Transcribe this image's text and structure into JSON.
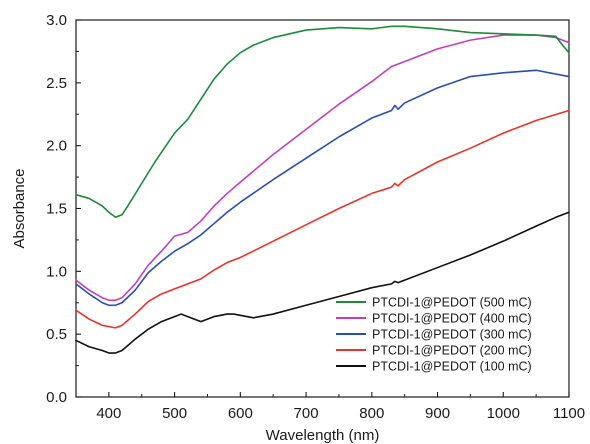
{
  "chart_data": {
    "type": "line",
    "xlabel": "Wavelength (nm)",
    "ylabel": "Absorbance",
    "xlim": [
      350,
      1100
    ],
    "ylim": [
      0,
      3.0
    ],
    "xticks": [
      400,
      500,
      600,
      700,
      800,
      900,
      1000,
      1100
    ],
    "yticks": [
      0.0,
      0.5,
      1.0,
      1.5,
      2.0,
      2.5,
      3.0
    ],
    "ytick_labels": [
      "0.0",
      "0.5",
      "1.0",
      "1.5",
      "2.0",
      "2.5",
      "3.0"
    ],
    "grid": false,
    "legend_position": "bottom-right",
    "series": [
      {
        "name": "PTCDI-1@PEDOT (500 mC)",
        "color": "#1e8a3a",
        "x": [
          350,
          370,
          390,
          400,
          410,
          420,
          430,
          450,
          470,
          500,
          520,
          540,
          560,
          580,
          600,
          620,
          650,
          700,
          750,
          800,
          830,
          850,
          900,
          950,
          1000,
          1050,
          1080,
          1090,
          1100
        ],
        "y": [
          1.61,
          1.58,
          1.52,
          1.47,
          1.43,
          1.45,
          1.53,
          1.7,
          1.87,
          2.1,
          2.21,
          2.37,
          2.53,
          2.65,
          2.74,
          2.8,
          2.86,
          2.92,
          2.94,
          2.93,
          2.95,
          2.95,
          2.93,
          2.9,
          2.89,
          2.88,
          2.87,
          2.8,
          2.74
        ]
      },
      {
        "name": "PTCDI-1@PEDOT (400 mC)",
        "color": "#c13fbf",
        "x": [
          350,
          370,
          390,
          400,
          410,
          420,
          440,
          460,
          480,
          500,
          520,
          540,
          560,
          580,
          600,
          650,
          700,
          750,
          800,
          830,
          850,
          900,
          950,
          1000,
          1050,
          1080,
          1100
        ],
        "y": [
          0.93,
          0.85,
          0.79,
          0.77,
          0.77,
          0.79,
          0.9,
          1.05,
          1.16,
          1.28,
          1.31,
          1.4,
          1.52,
          1.62,
          1.71,
          1.93,
          2.13,
          2.33,
          2.51,
          2.63,
          2.67,
          2.77,
          2.84,
          2.88,
          2.88,
          2.86,
          2.82
        ]
      },
      {
        "name": "PTCDI-1@PEDOT (300 mC)",
        "color": "#2a4db3",
        "x": [
          350,
          370,
          390,
          400,
          410,
          420,
          440,
          460,
          480,
          500,
          520,
          540,
          560,
          580,
          600,
          650,
          700,
          750,
          800,
          830,
          835,
          840,
          850,
          900,
          950,
          1000,
          1050,
          1080,
          1100
        ],
        "y": [
          0.9,
          0.82,
          0.75,
          0.73,
          0.73,
          0.75,
          0.85,
          0.99,
          1.08,
          1.16,
          1.22,
          1.29,
          1.38,
          1.47,
          1.55,
          1.73,
          1.9,
          2.07,
          2.22,
          2.28,
          2.32,
          2.29,
          2.34,
          2.46,
          2.55,
          2.58,
          2.6,
          2.57,
          2.55
        ]
      },
      {
        "name": "PTCDI-1@PEDOT (200 mC)",
        "color": "#e8332a",
        "x": [
          350,
          370,
          390,
          400,
          410,
          420,
          440,
          460,
          480,
          500,
          520,
          540,
          560,
          580,
          600,
          650,
          700,
          750,
          800,
          830,
          835,
          840,
          850,
          900,
          950,
          1000,
          1050,
          1100
        ],
        "y": [
          0.69,
          0.62,
          0.57,
          0.56,
          0.55,
          0.57,
          0.66,
          0.76,
          0.82,
          0.86,
          0.9,
          0.94,
          1.01,
          1.07,
          1.11,
          1.24,
          1.37,
          1.5,
          1.62,
          1.67,
          1.7,
          1.68,
          1.73,
          1.87,
          1.98,
          2.1,
          2.2,
          2.28
        ]
      },
      {
        "name": "PTCDI-1@PEDOT (100 mC)",
        "color": "#111111",
        "x": [
          350,
          370,
          390,
          400,
          410,
          420,
          440,
          460,
          480,
          500,
          510,
          520,
          540,
          560,
          580,
          590,
          600,
          620,
          650,
          700,
          750,
          800,
          830,
          835,
          840,
          850,
          900,
          950,
          1000,
          1050,
          1080,
          1100
        ],
        "y": [
          0.45,
          0.4,
          0.37,
          0.35,
          0.35,
          0.37,
          0.46,
          0.54,
          0.6,
          0.64,
          0.66,
          0.64,
          0.6,
          0.64,
          0.66,
          0.66,
          0.65,
          0.63,
          0.66,
          0.73,
          0.8,
          0.87,
          0.9,
          0.92,
          0.91,
          0.93,
          1.03,
          1.13,
          1.24,
          1.36,
          1.43,
          1.47
        ]
      }
    ]
  }
}
